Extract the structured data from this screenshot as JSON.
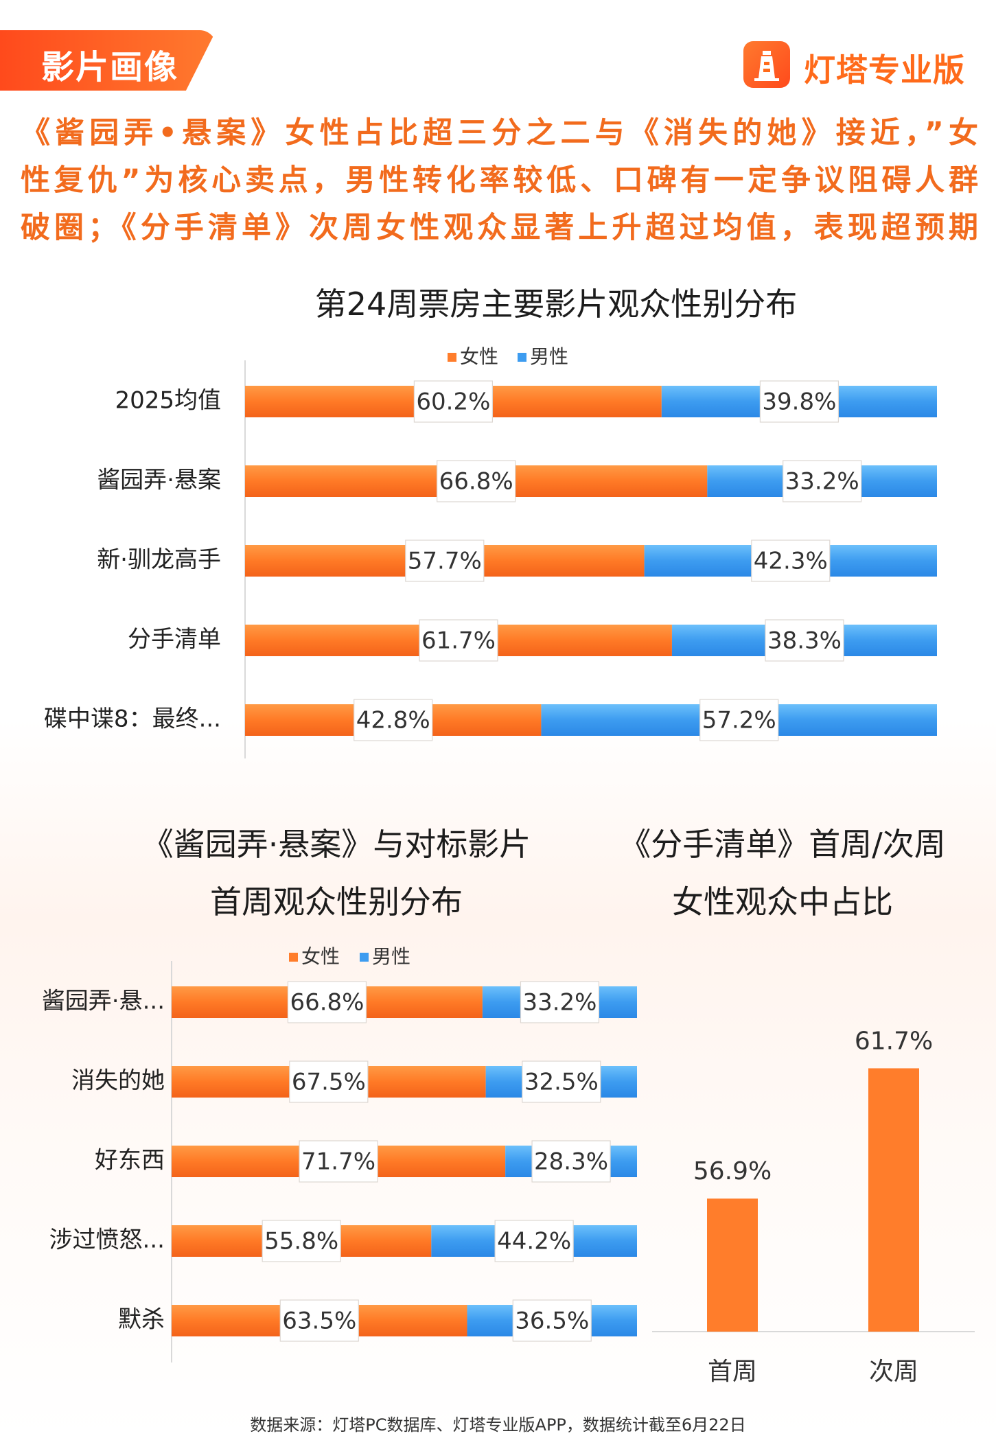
{
  "header": {
    "section_tag": "影片画像",
    "brand_name": "灯塔专业版",
    "brand_icon": "lighthouse-icon",
    "headline": [
      "《酱园弄•悬案》女性占比超三分之二与《消失的她》接近，”女",
      "性复仇”为核心卖点，男性转化率较低、口碑有一定争议阻碍人群",
      "破圈；《分手清单》次周女性观众显著上升超过均值，表现超预期"
    ]
  },
  "colors": {
    "accent": "#ff6a1a",
    "female": "#ff7d2b",
    "male": "#3d9cf0",
    "headline": "#f26b1d"
  },
  "chart_data": [
    {
      "type": "bar",
      "orientation": "horizontal",
      "stacked": true,
      "title": "第24周票房主要影片观众性别分布",
      "legend_position": "top",
      "categories": [
        "2025均值",
        "酱园弄·悬案",
        "新·驯龙高手",
        "分手清单",
        "碟中谍8：最终..."
      ],
      "series": [
        {
          "name": "女性",
          "values": [
            60.2,
            66.8,
            57.7,
            61.7,
            42.8
          ],
          "labels": [
            "60.2%",
            "66.8%",
            "57.7%",
            "61.7%",
            "42.8%"
          ]
        },
        {
          "name": "男性",
          "values": [
            39.8,
            33.2,
            42.3,
            38.3,
            57.2
          ],
          "labels": [
            "39.8%",
            "33.2%",
            "42.3%",
            "38.3%",
            "57.2%"
          ]
        }
      ],
      "xlim": [
        0,
        100
      ]
    },
    {
      "type": "bar",
      "orientation": "horizontal",
      "stacked": true,
      "title": [
        "《酱园弄·悬案》与对标影片",
        "首周观众性别分布"
      ],
      "legend_position": "top",
      "categories": [
        "酱园弄·悬...",
        "消失的她",
        "好东西",
        "涉过愤怒...",
        "默杀"
      ],
      "series": [
        {
          "name": "女性",
          "values": [
            66.8,
            67.5,
            71.7,
            55.8,
            63.5
          ],
          "labels": [
            "66.8%",
            "67.5%",
            "71.7%",
            "55.8%",
            "63.5%"
          ]
        },
        {
          "name": "男性",
          "values": [
            33.2,
            32.5,
            28.3,
            44.2,
            36.5
          ],
          "labels": [
            "33.2%",
            "32.5%",
            "28.3%",
            "44.2%",
            "36.5%"
          ]
        }
      ],
      "xlim": [
        0,
        100
      ]
    },
    {
      "type": "bar",
      "orientation": "vertical",
      "title": [
        "《分手清单》首周/次周",
        "女性观众中占比"
      ],
      "categories": [
        "首周",
        "次周"
      ],
      "values": [
        56.9,
        61.7
      ],
      "labels": [
        "56.9%",
        "61.7%"
      ],
      "ylim": [
        52,
        63
      ]
    }
  ],
  "footer": {
    "source": "数据来源：灯塔PC数据库、灯塔专业版APP，数据统计截至6月22日"
  }
}
